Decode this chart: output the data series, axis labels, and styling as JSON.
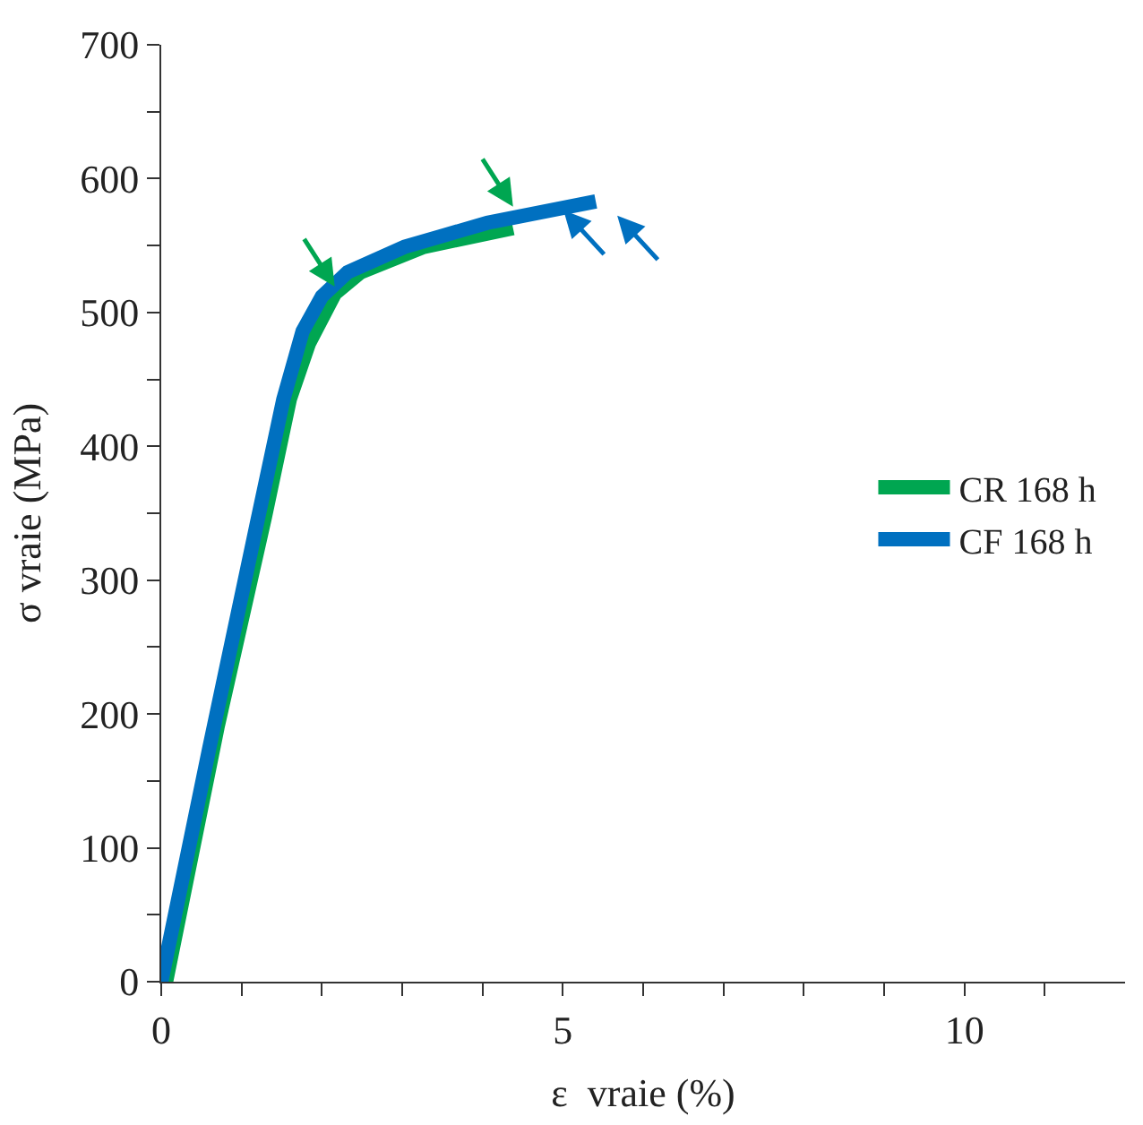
{
  "chart_data": {
    "type": "line",
    "xlabel": "ε  vraie (%)",
    "ylabel": "σ vraie (MPa)",
    "xlim": [
      0,
      12
    ],
    "ylim": [
      0,
      700
    ],
    "xticks": [
      0,
      {
        "value": 1,
        "label": null
      },
      {
        "value": 2,
        "label": null
      },
      {
        "value": 3,
        "label": null
      },
      {
        "value": 4,
        "label": null
      },
      5,
      {
        "value": 6,
        "label": null
      },
      {
        "value": 7,
        "label": null
      },
      {
        "value": 8,
        "label": null
      },
      {
        "value": 9,
        "label": null
      },
      10,
      {
        "value": 11,
        "label": null
      }
    ],
    "yticks": [
      0,
      {
        "value": 50,
        "label": null
      },
      100,
      {
        "value": 150,
        "label": null
      },
      200,
      {
        "value": 250,
        "label": null
      },
      300,
      {
        "value": 350,
        "label": null
      },
      400,
      {
        "value": 450,
        "label": null
      },
      500,
      {
        "value": 550,
        "label": null
      },
      600,
      {
        "value": 650,
        "label": null
      },
      700
    ],
    "legend": "right",
    "marker": "none",
    "line_style": "solid",
    "series": [
      {
        "name": "CR 168 h",
        "color": "#00a651",
        "x": [
          0.06,
          0.7,
          1.29,
          1.6,
          1.84,
          2.16,
          2.48,
          3.27,
          4.38
        ],
        "values": [
          0,
          190,
          347,
          435,
          477,
          514,
          530,
          549,
          563
        ]
      },
      {
        "name": "CF 168 h",
        "color": "#0070c0",
        "x": [
          0.0,
          0.6,
          1.2,
          1.52,
          1.76,
          2.0,
          2.32,
          3.03,
          4.06,
          5.41
        ],
        "values": [
          0,
          175,
          345,
          435,
          486,
          512,
          530,
          549,
          567,
          583
        ]
      }
    ]
  }
}
